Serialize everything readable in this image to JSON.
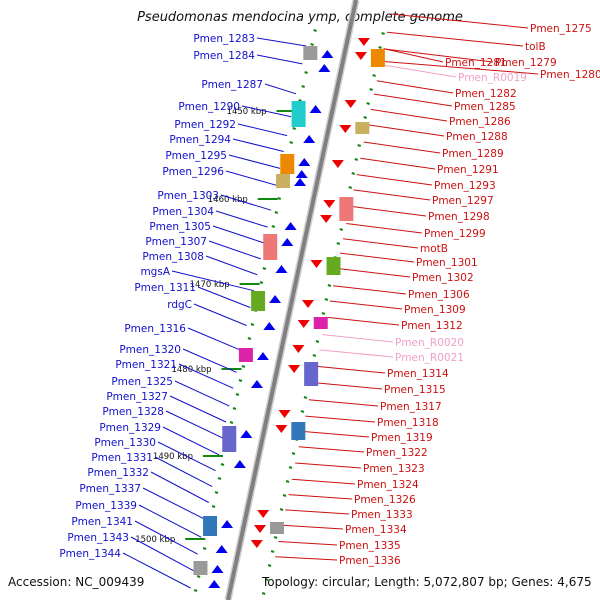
{
  "title": "Pseudomonas mendocina ymp, complete genome",
  "accession_text": "Accession: NC_009439",
  "topology_text": "Topology: circular; Length: 5,072,807 bp; Genes: 4,675",
  "colors": {
    "left_label": "#1010cc",
    "right_label": "#cc1010",
    "rna_label": "#f0a0c8",
    "backbone": "#808080",
    "forward_gene": "#0000ee",
    "reverse_gene": "#ee0000",
    "tick": "#118811"
  },
  "scale_labels": [
    "1450 kbp",
    "1460 kbp",
    "1470 kbp",
    "1480 kbp",
    "1490 kbp",
    "1500 kbp"
  ],
  "left_labels": [
    "Pmen_1283",
    "Pmen_1284",
    "Pmen_1287",
    "Pmen_1290",
    "Pmen_1292",
    "Pmen_1294",
    "Pmen_1295",
    "Pmen_1296",
    "Pmen_1303",
    "Pmen_1304",
    "Pmen_1305",
    "Pmen_1307",
    "Pmen_1308",
    "mgsA",
    "Pmen_1311",
    "rdgC",
    "Pmen_1316",
    "Pmen_1320",
    "Pmen_1321",
    "Pmen_1325",
    "Pmen_1327",
    "Pmen_1328",
    "Pmen_1329",
    "Pmen_1330",
    "Pmen_1331",
    "Pmen_1332",
    "Pmen_1337",
    "Pmen_1339",
    "Pmen_1341",
    "Pmen_1343",
    "Pmen_1344"
  ],
  "right_labels": [
    "Pmen_1275",
    "tolB",
    "Pmen_1281",
    "Pmen_1279",
    "Pmen_1280",
    "Pmen_R0019",
    "Pmen_1282",
    "Pmen_1285",
    "Pmen_1286",
    "Pmen_1288",
    "Pmen_1289",
    "Pmen_1291",
    "Pmen_1293",
    "Pmen_1297",
    "Pmen_1298",
    "Pmen_1299",
    "motB",
    "Pmen_1301",
    "Pmen_1302",
    "Pmen_1306",
    "Pmen_1309",
    "Pmen_1312",
    "Pmen_R0020",
    "Pmen_R0021",
    "Pmen_1314",
    "Pmen_1315",
    "Pmen_1317",
    "Pmen_1318",
    "Pmen_1319",
    "Pmen_1322",
    "Pmen_1323",
    "Pmen_1324",
    "Pmen_1326",
    "Pmen_1333",
    "Pmen_1334",
    "Pmen_1335",
    "Pmen_1336"
  ],
  "rna_labels": [
    "Pmen_R0019",
    "Pmen_R0020",
    "Pmen_R0021"
  ]
}
